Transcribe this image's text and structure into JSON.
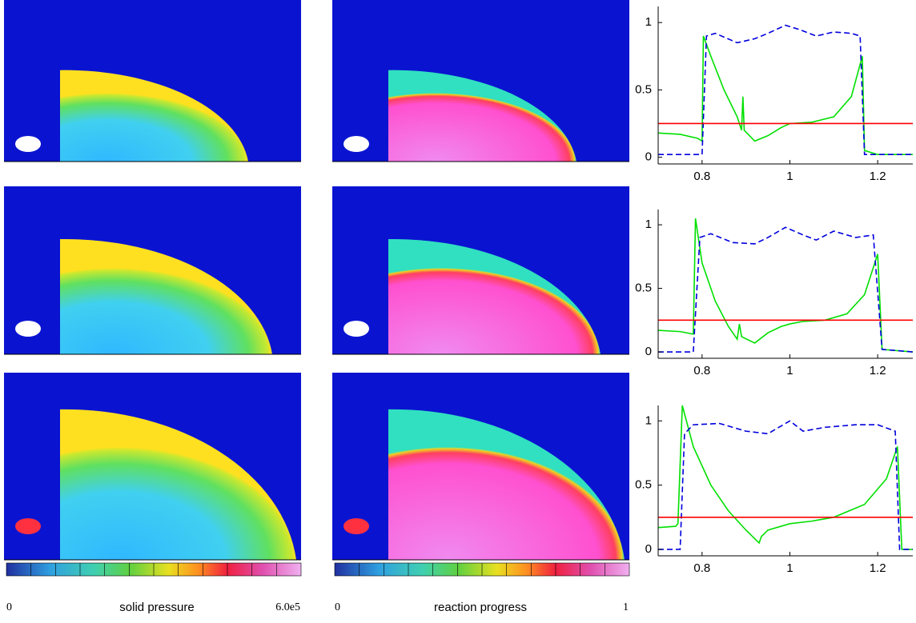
{
  "chart_data": [
    {
      "type": "line",
      "xlim": [
        0.7,
        1.28
      ],
      "ylim": [
        -0.05,
        1.12
      ],
      "xticks": [
        0.8,
        1,
        1.2
      ],
      "yticks": [
        0,
        0.5,
        1
      ],
      "series": [
        {
          "color": "#00e000",
          "style": "solid",
          "x": [
            0.7,
            0.75,
            0.79,
            0.8,
            0.803,
            0.82,
            0.85,
            0.88,
            0.89,
            0.893,
            0.896,
            0.92,
            0.95,
            0.98,
            1.0,
            1.05,
            1.1,
            1.14,
            1.165,
            1.17,
            1.2,
            1.28
          ],
          "values": [
            0.18,
            0.17,
            0.14,
            0.12,
            0.9,
            0.75,
            0.5,
            0.3,
            0.2,
            0.45,
            0.2,
            0.12,
            0.16,
            0.22,
            0.25,
            0.26,
            0.3,
            0.45,
            0.75,
            0.05,
            0.02,
            0.02
          ]
        },
        {
          "color": "#0000dd",
          "style": "dashed",
          "x": [
            0.7,
            0.8,
            0.81,
            0.83,
            0.88,
            0.92,
            0.95,
            0.99,
            1.02,
            1.06,
            1.1,
            1.14,
            1.16,
            1.17,
            1.28
          ],
          "values": [
            0.02,
            0.02,
            0.9,
            0.92,
            0.85,
            0.88,
            0.92,
            0.98,
            0.95,
            0.9,
            0.93,
            0.92,
            0.9,
            0.02,
            0.02
          ]
        },
        {
          "color": "#ff0000",
          "style": "solid",
          "x": [
            0.7,
            1.28
          ],
          "values": [
            0.25,
            0.25
          ]
        }
      ]
    },
    {
      "type": "line",
      "xlim": [
        0.7,
        1.28
      ],
      "ylim": [
        -0.05,
        1.12
      ],
      "xticks": [
        0.8,
        1,
        1.2
      ],
      "yticks": [
        0,
        0.5,
        1
      ],
      "series": [
        {
          "color": "#00e000",
          "style": "solid",
          "x": [
            0.7,
            0.75,
            0.78,
            0.785,
            0.8,
            0.83,
            0.86,
            0.88,
            0.885,
            0.89,
            0.92,
            0.95,
            0.98,
            1.0,
            1.03,
            1.08,
            1.13,
            1.17,
            1.2,
            1.21,
            1.28
          ],
          "values": [
            0.17,
            0.16,
            0.14,
            1.05,
            0.7,
            0.4,
            0.2,
            0.1,
            0.22,
            0.12,
            0.07,
            0.15,
            0.2,
            0.22,
            0.24,
            0.25,
            0.3,
            0.45,
            0.77,
            0.02,
            0
          ]
        },
        {
          "color": "#0000dd",
          "style": "dashed",
          "x": [
            0.7,
            0.78,
            0.795,
            0.82,
            0.87,
            0.92,
            0.95,
            0.99,
            1.03,
            1.06,
            1.1,
            1.15,
            1.19,
            1.21,
            1.28
          ],
          "values": [
            0,
            0,
            0.9,
            0.93,
            0.86,
            0.85,
            0.9,
            0.98,
            0.92,
            0.88,
            0.95,
            0.9,
            0.92,
            0.02,
            0
          ]
        },
        {
          "color": "#ff0000",
          "style": "solid",
          "x": [
            0.7,
            1.28
          ],
          "values": [
            0.25,
            0.25
          ]
        }
      ]
    },
    {
      "type": "line",
      "xlim": [
        0.7,
        1.28
      ],
      "ylim": [
        -0.05,
        1.12
      ],
      "xticks": [
        0.8,
        1,
        1.2
      ],
      "yticks": [
        0,
        0.5,
        1
      ],
      "series": [
        {
          "color": "#00e000",
          "style": "solid",
          "x": [
            0.7,
            0.74,
            0.745,
            0.755,
            0.78,
            0.82,
            0.86,
            0.9,
            0.93,
            0.935,
            0.95,
            1.0,
            1.05,
            1.1,
            1.17,
            1.22,
            1.245,
            1.255,
            1.28
          ],
          "values": [
            0.17,
            0.18,
            0.2,
            1.12,
            0.8,
            0.5,
            0.3,
            0.15,
            0.05,
            0.1,
            0.15,
            0.2,
            0.22,
            0.25,
            0.35,
            0.55,
            0.8,
            0,
            0
          ]
        },
        {
          "color": "#0000dd",
          "style": "dashed",
          "x": [
            0.7,
            0.75,
            0.76,
            0.78,
            0.84,
            0.9,
            0.95,
            0.99,
            1.0,
            1.03,
            1.08,
            1.15,
            1.2,
            1.24,
            1.25,
            1.28
          ],
          "values": [
            0,
            0,
            0.9,
            0.97,
            0.98,
            0.92,
            0.9,
            0.98,
            1.0,
            0.92,
            0.95,
            0.97,
            0.97,
            0.92,
            0,
            0
          ]
        },
        {
          "color": "#ff0000",
          "style": "solid",
          "x": [
            0.7,
            1.28
          ],
          "values": [
            0.25,
            0.25
          ]
        }
      ]
    }
  ],
  "colorbars": [
    {
      "min_label": "0",
      "label": "solid pressure",
      "max_label": "6.0e5"
    },
    {
      "min_label": "0",
      "label": "reaction progress",
      "max_label": "1"
    }
  ]
}
